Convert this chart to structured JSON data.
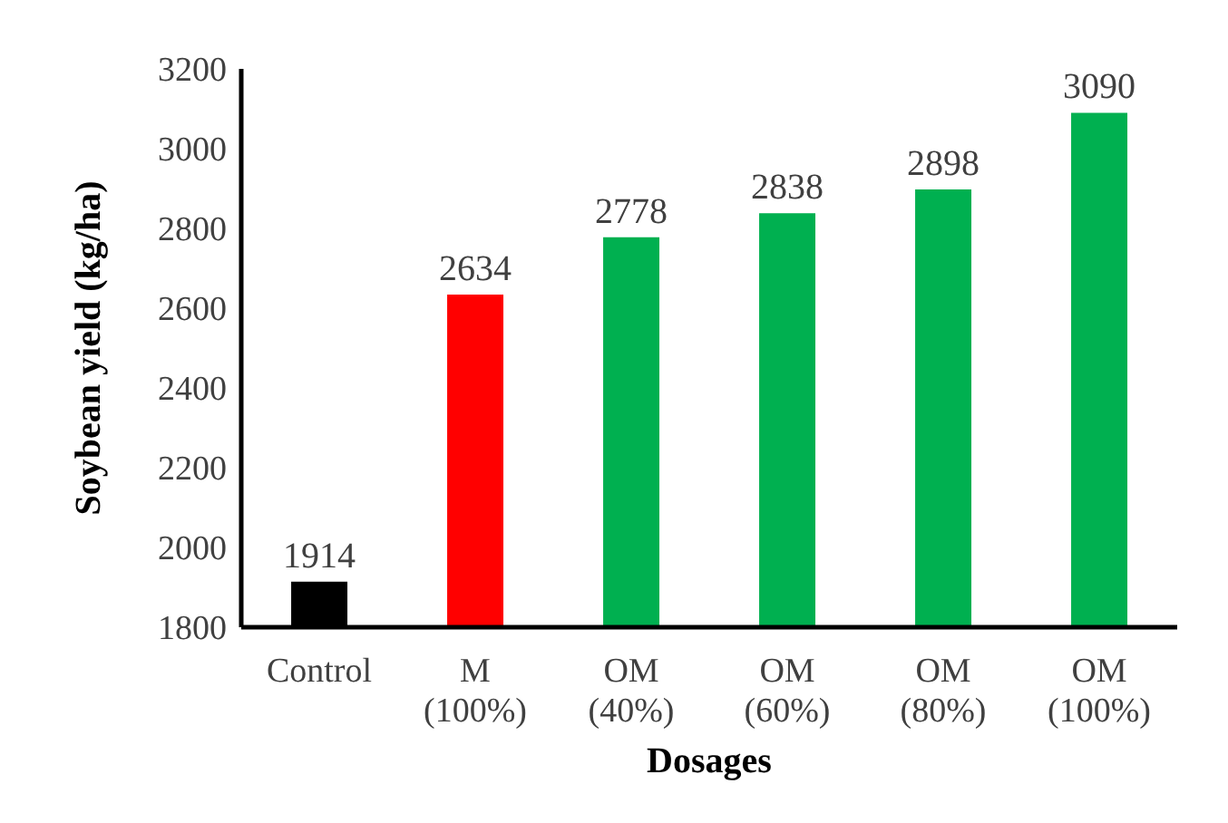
{
  "chart_data": {
    "type": "bar",
    "xlabel": "Dosages",
    "ylabel": "Soybean yield (kg/ha)",
    "categories": [
      "Control",
      "M\n(100%)",
      "OM\n(40%)",
      "OM\n(60%)",
      "OM\n(80%)",
      "OM\n(100%)"
    ],
    "values": [
      1914,
      2634,
      2778,
      2838,
      2898,
      3090
    ],
    "colors": [
      "#000000",
      "#ff0000",
      "#00b050",
      "#00b050",
      "#00b050",
      "#00b050"
    ],
    "ylim": [
      1800,
      3200
    ],
    "yticks": [
      1800,
      2000,
      2200,
      2400,
      2600,
      2800,
      3000,
      3200
    ],
    "data_labels": true,
    "grid": false,
    "legend": false
  }
}
